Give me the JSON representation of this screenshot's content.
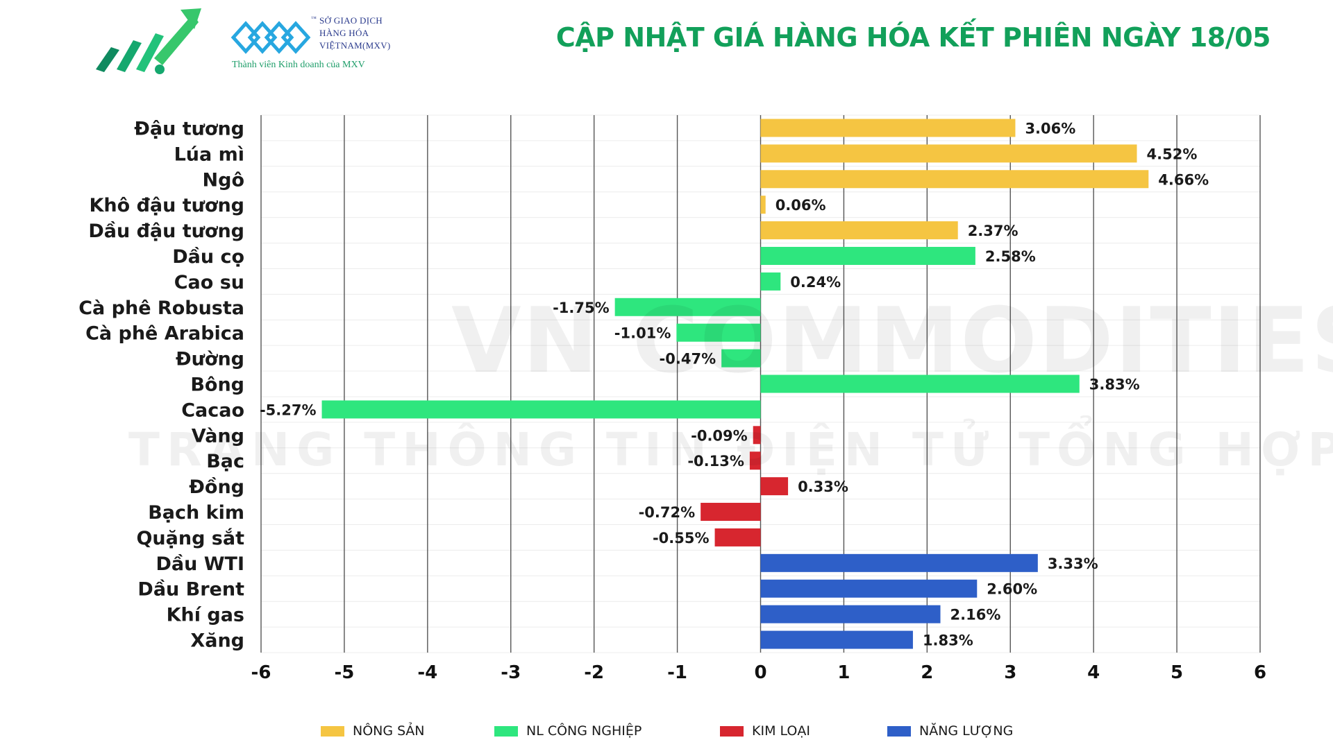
{
  "header": {
    "title": "CẬP NHẬT GIÁ HÀNG HÓA KẾT PHIÊN NGÀY 18/05",
    "mxv_name_1": "SỞ GIAO DỊCH",
    "mxv_name_2": "HÀNG HÓA",
    "mxv_name_3": "VIỆTNAM(MXV)",
    "mxv_tm": "™",
    "mxv_member": "Thành viên Kinh doanh của MXV"
  },
  "watermark": {
    "line1": "VN COMMODITIES",
    "line2": "TRANG THÔNG TIN ĐIỆN TỬ TỔNG HỢP"
  },
  "colors": {
    "nong_san": "#F5C542",
    "nl_cong_nghiep": "#2EE67E",
    "kim_loai": "#D7262F",
    "nang_luong": "#2E5FC8",
    "title": "#12A05A"
  },
  "legend": [
    {
      "label": "NÔNG SẢN",
      "color": "#F5C542"
    },
    {
      "label": "NL CÔNG NGHIỆP",
      "color": "#2EE67E"
    },
    {
      "label": "KIM LOẠI",
      "color": "#D7262F"
    },
    {
      "label": "NĂNG LƯỢNG",
      "color": "#2E5FC8"
    }
  ],
  "chart_data": {
    "type": "bar",
    "orientation": "horizontal",
    "title": "",
    "xlabel": "",
    "ylabel": "",
    "xlim": [
      -6,
      6
    ],
    "xticks": [
      -6,
      -5,
      -4,
      -3,
      -2,
      -1,
      0,
      1,
      2,
      3,
      4,
      5,
      6
    ],
    "grid": "vertical",
    "legend_position": "bottom",
    "categories": [
      "Đậu tương",
      "Lúa mì",
      "Ngô",
      "Khô đậu tương",
      "Dầu đậu tương",
      "Dầu cọ",
      "Cao su",
      "Cà phê Robusta",
      "Cà phê Arabica",
      "Đường",
      "Bông",
      "Cacao",
      "Vàng",
      "Bạc",
      "Đồng",
      "Bạch kim",
      "Quặng sắt",
      "Dầu WTI",
      "Dầu Brent",
      "Khí gas",
      "Xăng"
    ],
    "values": [
      3.06,
      4.52,
      4.66,
      0.06,
      2.37,
      2.58,
      0.24,
      -1.75,
      -1.01,
      -0.47,
      3.83,
      -5.27,
      -0.09,
      -0.13,
      0.33,
      -0.72,
      -0.55,
      3.33,
      2.6,
      2.16,
      1.83
    ],
    "labels": [
      "3.06%",
      "4.52%",
      "4.66%",
      "0.06%",
      "2.37%",
      "2.58%",
      "0.24%",
      "-1.75%",
      "-1.01%",
      "-0.47%",
      "3.83%",
      "-5.27%",
      "-0.09%",
      "-0.13%",
      "0.33%",
      "-0.72%",
      "-0.55%",
      "3.33%",
      "2.60%",
      "2.16%",
      "1.83%"
    ],
    "groups": [
      "NÔNG SẢN",
      "NÔNG SẢN",
      "NÔNG SẢN",
      "NÔNG SẢN",
      "NÔNG SẢN",
      "NL CÔNG NGHIỆP",
      "NL CÔNG NGHIỆP",
      "NL CÔNG NGHIỆP",
      "NL CÔNG NGHIỆP",
      "NL CÔNG NGHIỆP",
      "NL CÔNG NGHIỆP",
      "NL CÔNG NGHIỆP",
      "KIM LOẠI",
      "KIM LOẠI",
      "KIM LOẠI",
      "KIM LOẠI",
      "KIM LOẠI",
      "NĂNG LƯỢNG",
      "NĂNG LƯỢNG",
      "NĂNG LƯỢNG",
      "NĂNG LƯỢNG"
    ]
  }
}
